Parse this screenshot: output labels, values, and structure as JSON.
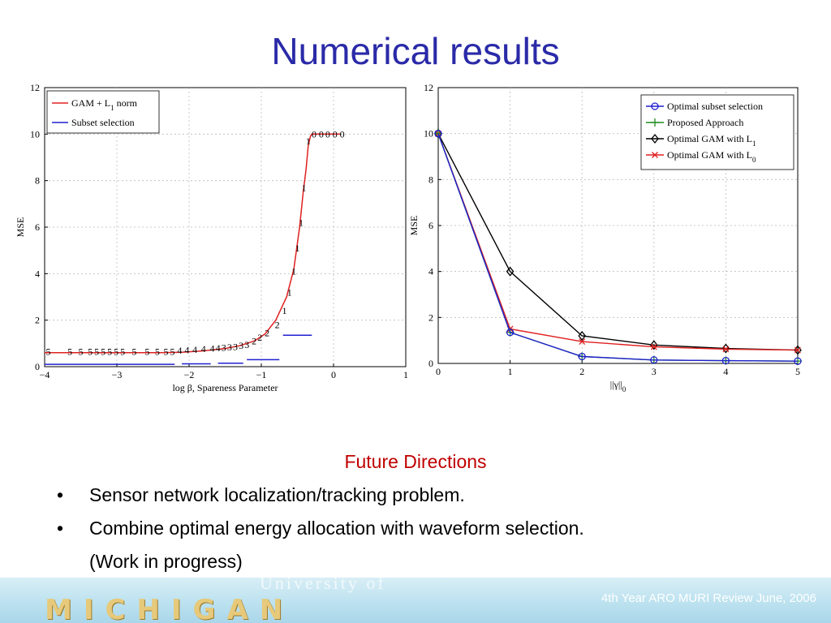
{
  "title": "Numerical results",
  "future": {
    "heading": "Future Directions",
    "bullets": [
      "Sensor network localization/tracking problem.",
      "Combine optimal energy allocation with waveform selection.",
      "(Work in progress)"
    ],
    "bullet_char": "•"
  },
  "footer": {
    "logo_text": "MICHIGAN",
    "logo_top_text": "University of",
    "review_text": "4th Year ARO MURI Review June, 2006"
  },
  "colors": {
    "title": "#2a2aa8",
    "red": "#e02020",
    "blue": "#2020d0",
    "green": "#1f8f1f",
    "black": "#000000"
  },
  "chart_data": [
    {
      "type": "line",
      "xlabel": "log β, Spareness Parameter",
      "ylabel": "MSE",
      "xlim": [
        -4,
        1
      ],
      "ylim": [
        0,
        12
      ],
      "xticks": [
        "−4",
        "−3",
        "−2",
        "−1",
        "0",
        "1"
      ],
      "yticks": [
        "0",
        "2",
        "4",
        "6",
        "8",
        "10",
        "12"
      ],
      "grid": true,
      "legend_position": "top-left",
      "legend": [
        "GAM + L1 norm",
        "Subset selection"
      ],
      "series": [
        {
          "name": "GAM + L1 norm",
          "color": "#e02020",
          "x": [
            -4,
            -3.6,
            -3.2,
            -2.8,
            -2.4,
            -2.1,
            -1.8,
            -1.5,
            -1.3,
            -1.1,
            -0.95,
            -0.8,
            -0.65,
            -0.55,
            -0.47,
            -0.42,
            -0.38,
            -0.35,
            -0.32,
            -0.3,
            -0.25,
            -0.15,
            0,
            0.1
          ],
          "y": [
            0.6,
            0.6,
            0.6,
            0.6,
            0.6,
            0.62,
            0.68,
            0.78,
            0.9,
            1.1,
            1.4,
            2.0,
            3.0,
            4.2,
            6.0,
            7.5,
            8.5,
            9.5,
            9.9,
            10.0,
            10.0,
            10.0,
            10.0,
            10.0
          ]
        }
      ],
      "segments": {
        "name": "Subset selection",
        "color": "#2020d0",
        "items": [
          {
            "x": [
              -4,
              -2.2
            ],
            "y": [
              0.1,
              0.1
            ]
          },
          {
            "x": [
              -2.1,
              -1.7
            ],
            "y": [
              0.12,
              0.12
            ]
          },
          {
            "x": [
              -1.6,
              -1.25
            ],
            "y": [
              0.15,
              0.15
            ]
          },
          {
            "x": [
              -1.2,
              -0.75
            ],
            "y": [
              0.3,
              0.3
            ]
          },
          {
            "x": [
              -0.7,
              -0.3
            ],
            "y": [
              1.35,
              1.35
            ]
          }
        ]
      },
      "markers": [
        {
          "x": -3.95,
          "y": 0.65,
          "t": "5"
        },
        {
          "x": -3.65,
          "y": 0.65,
          "t": "5"
        },
        {
          "x": -3.5,
          "y": 0.65,
          "t": "5"
        },
        {
          "x": -3.37,
          "y": 0.65,
          "t": "5"
        },
        {
          "x": -3.28,
          "y": 0.65,
          "t": "5"
        },
        {
          "x": -3.19,
          "y": 0.65,
          "t": "5"
        },
        {
          "x": -3.1,
          "y": 0.65,
          "t": "5"
        },
        {
          "x": -3.01,
          "y": 0.65,
          "t": "5"
        },
        {
          "x": -2.92,
          "y": 0.65,
          "t": "5"
        },
        {
          "x": -2.76,
          "y": 0.65,
          "t": "5"
        },
        {
          "x": -2.58,
          "y": 0.65,
          "t": "5"
        },
        {
          "x": -2.44,
          "y": 0.65,
          "t": "5"
        },
        {
          "x": -2.32,
          "y": 0.65,
          "t": "5"
        },
        {
          "x": -2.23,
          "y": 0.65,
          "t": "5"
        },
        {
          "x": -2.13,
          "y": 0.7,
          "t": "4"
        },
        {
          "x": -2.03,
          "y": 0.72,
          "t": "4"
        },
        {
          "x": -1.92,
          "y": 0.74,
          "t": "4"
        },
        {
          "x": -1.8,
          "y": 0.76,
          "t": "4"
        },
        {
          "x": -1.68,
          "y": 0.78,
          "t": "4"
        },
        {
          "x": -1.6,
          "y": 0.8,
          "t": "4"
        },
        {
          "x": -1.52,
          "y": 0.82,
          "t": "3"
        },
        {
          "x": -1.44,
          "y": 0.84,
          "t": "3"
        },
        {
          "x": -1.36,
          "y": 0.86,
          "t": "3"
        },
        {
          "x": -1.28,
          "y": 0.9,
          "t": "3"
        },
        {
          "x": -1.2,
          "y": 0.95,
          "t": "3"
        },
        {
          "x": -1.1,
          "y": 1.1,
          "t": "2"
        },
        {
          "x": -1.02,
          "y": 1.25,
          "t": "2"
        },
        {
          "x": -0.92,
          "y": 1.45,
          "t": "2"
        },
        {
          "x": -0.78,
          "y": 1.8,
          "t": "2"
        },
        {
          "x": -0.68,
          "y": 2.4,
          "t": "1"
        },
        {
          "x": -0.61,
          "y": 3.2,
          "t": "1"
        },
        {
          "x": -0.55,
          "y": 4.1,
          "t": "1"
        },
        {
          "x": -0.5,
          "y": 5.1,
          "t": "1"
        },
        {
          "x": -0.45,
          "y": 6.2,
          "t": "1"
        },
        {
          "x": -0.41,
          "y": 7.7,
          "t": "1"
        },
        {
          "x": -0.35,
          "y": 9.7,
          "t": "1"
        },
        {
          "x": -0.27,
          "y": 10.0,
          "t": "0"
        },
        {
          "x": -0.17,
          "y": 10.0,
          "t": "0"
        },
        {
          "x": -0.08,
          "y": 10.0,
          "t": "0"
        },
        {
          "x": 0.02,
          "y": 10.0,
          "t": "0"
        },
        {
          "x": 0.12,
          "y": 10.0,
          "t": "0"
        }
      ]
    },
    {
      "type": "line",
      "xlabel": "||γ||0",
      "ylabel": "MSE",
      "xlim": [
        0,
        5
      ],
      "ylim": [
        0,
        12
      ],
      "xticks": [
        "0",
        "1",
        "2",
        "3",
        "4",
        "5"
      ],
      "yticks": [
        "0",
        "2",
        "4",
        "6",
        "8",
        "10",
        "12"
      ],
      "grid": true,
      "legend_position": "top-right",
      "legend": [
        "Optimal subset selection",
        "Proposed Approach",
        "Optimal GAM with L1",
        "Optimal GAM with L0"
      ],
      "x": [
        0,
        1,
        2,
        3,
        4,
        5
      ],
      "series": [
        {
          "name": "Optimal subset selection",
          "color": "#2020d0",
          "marker": "circle",
          "values": [
            10.0,
            1.35,
            0.3,
            0.15,
            0.12,
            0.1
          ]
        },
        {
          "name": "Proposed Approach",
          "color": "#1f8f1f",
          "marker": "plus",
          "values": [
            10.0,
            1.35,
            0.3,
            0.15,
            0.12,
            0.1
          ]
        },
        {
          "name": "Optimal GAM with L1",
          "color": "#000000",
          "marker": "diamond",
          "values": [
            10.0,
            4.0,
            1.2,
            0.8,
            0.65,
            0.58
          ]
        },
        {
          "name": "Optimal GAM with L0",
          "color": "#e02020",
          "marker": "x",
          "values": [
            10.0,
            1.5,
            0.95,
            0.72,
            0.62,
            0.58
          ]
        }
      ]
    }
  ]
}
